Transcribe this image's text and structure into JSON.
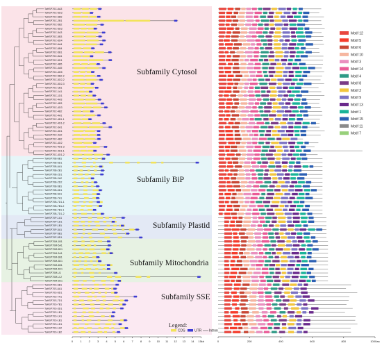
{
  "chart_data": {
    "type": "gene-structure-and-motif-map",
    "genes": [
      "TaHSP70C-6A3",
      "TaHSP70C-6D3",
      "TaHSP70C-6B9",
      "TaHSP70C-2B1",
      "TaHSP70C-5B2",
      "TaHSP70C-5D3",
      "TaHSP70C-5A3",
      "TaHSP70C-5B3",
      "TaHSP70C-6D4",
      "TaHSP70C-6A4",
      "TaHSP70C-6B4",
      "TaHSP70C-5B1",
      "TaHSP70C-5A1",
      "TaHSP70C-5D1",
      "TaHSP70C-4B5",
      "TaHSP70C-4A5",
      "TaHSP70C-4D5",
      "TaHSP70C-5B2-2",
      "TaHSP70C-5D2-2",
      "TaHSP70C-5D2-3",
      "TaHSP70C-1B1",
      "TaHSP70C-1A1",
      "TaHSP70C-1D1",
      "TaHSP70C-4A3",
      "TaHSP70C-4B3",
      "TaHSP70C-4D3",
      "TaHSP70C-4B2",
      "TaHSP70C-4A1",
      "TaHSP70C-4B1-1",
      "TaHSP70C-4D1-2",
      "TaHSP70C-3A1",
      "TaHSP70C-3D1",
      "TaHSP70C-4A2",
      "TaHSP70C-4B2",
      "TaHSP70C-4D2",
      "TaHSP70C-4D1-3",
      "TaHSP70C-4D1-1",
      "TaHSP70C-4D1-2",
      "TaHSP70B-6B1",
      "TaHSP70B-6D1",
      "TaHSP70B-6A1",
      "TaHSP70B-2B1",
      "TaHSP70B-2D1",
      "TaHSP70B-2A2",
      "TaHSP70B-2D2",
      "TaHSP70B-5B1",
      "TaHSP70B-5D1",
      "TaHSP70B-5A1",
      "TaHSP70B-7A1",
      "TaHSP70B-7D1-1",
      "TaHSP70B-7B1-2",
      "TaHSP70B-7B1-1",
      "TaHSP70B-7D1-2",
      "TaHSP70P-1A1",
      "TaHSP70P-1D1",
      "TaHSP70P-1B1",
      "TaHSP70P-5A1",
      "TaHSP70P-5B1",
      "TaHSP70P-5D1",
      "TaHSP70M-1B1",
      "TaHSP70M-5A1",
      "TaHSP70M-5D1",
      "TaHSP70M-3A1",
      "TaHSP70M-3B1",
      "TaHSP70M-3D1",
      "TaHSP70M-4B1",
      "TaHSP70M-4D1",
      "TaHSP70M-U1",
      "TaHSP70M-U-2",
      "TaHSP70M-2D1",
      "TaHSP70S-6B1",
      "TaHSP70S-6A1",
      "TaHSP70S-6D1",
      "TaHSP70S-7A1",
      "TaHSP70S-7D1",
      "TaHSP70S-7B1",
      "TaHSP70S-3D1",
      "TaHSP70S-1B1",
      "TaHSP70S-1A1",
      "TaHSP70S-1B1",
      "TaHSP70S-1D1",
      "TaHSP70S-1A2",
      "TaHSP70S-1B2"
    ],
    "subfamilies": [
      "Subfamily Cytosol",
      "Subfamily BiP",
      "Subfamily Plastid",
      "Subfamily Mitochondria",
      "Subfamily SSE"
    ],
    "gene_axis": {
      "ticks": [
        "0",
        "1",
        "2",
        "3",
        "4",
        "5",
        "6",
        "7",
        "8",
        "9",
        "10",
        "11",
        "12",
        "13",
        "14",
        "15kb"
      ],
      "range": [
        0,
        15
      ],
      "unit": "kb"
    },
    "motif_axis": {
      "ticks": [
        "0",
        "200",
        "400",
        "600",
        "800",
        "1000aa"
      ],
      "range": [
        0,
        1000
      ],
      "unit": "aa"
    },
    "gene_legend": {
      "title": "Legend:",
      "items": [
        "CDS",
        "UTR",
        "Intron"
      ]
    },
    "motifs": [
      {
        "name": "Motif 12",
        "color": "#e8473f"
      },
      {
        "name": "Motif 5",
        "color": "#f53c2c"
      },
      {
        "name": "Motif 6",
        "color": "#c94735"
      },
      {
        "name": "Motif 10",
        "color": "#f6b6a0"
      },
      {
        "name": "Motif 3",
        "color": "#ea8fbf"
      },
      {
        "name": "Motif 14",
        "color": "#ea5b97"
      },
      {
        "name": "Motif 4",
        "color": "#2f9a86"
      },
      {
        "name": "Motif 8",
        "color": "#7a3b86"
      },
      {
        "name": "Motif 2",
        "color": "#f2c53e"
      },
      {
        "name": "Motif 9",
        "color": "#7b73c4"
      },
      {
        "name": "Motif 13",
        "color": "#6a2a8c"
      },
      {
        "name": "Motif 1",
        "color": "#19b398"
      },
      {
        "name": "Motif 15",
        "color": "#2b5fb3"
      },
      {
        "name": "Motif 11",
        "color": "#8a8a8a"
      },
      {
        "name": "Motif 7",
        "color": "#97d07a"
      }
    ],
    "colors": {
      "cds": "#f2e35a",
      "utr": "#3b3bd4",
      "intron": "#444444"
    }
  }
}
